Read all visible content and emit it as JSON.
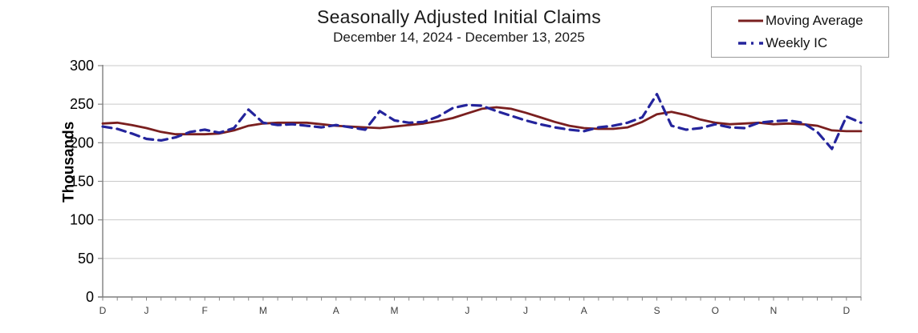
{
  "header": {
    "title": "Seasonally Adjusted Initial Claims",
    "subtitle": "December 14, 2024 - December 13, 2025"
  },
  "legend": {
    "items": [
      {
        "label": "Moving Average",
        "color": "#7a1f1f",
        "line_style": "solid"
      },
      {
        "label": "Weekly IC",
        "color": "#24249c",
        "line_style": "dashed"
      }
    ]
  },
  "y_axis": {
    "title": "Thousands"
  },
  "chart_data": {
    "type": "line",
    "title": "Seasonally Adjusted Initial Claims",
    "subtitle": "December 14, 2024 - December 13, 2025",
    "xlabel": "",
    "ylabel": "Thousands",
    "ylim": [
      0,
      300
    ],
    "yticks": [
      0,
      50,
      100,
      150,
      200,
      250,
      300
    ],
    "grid": "horizontal",
    "legend_position": "top-right",
    "x_unit": "weeks ending Dec 14, 2024 through Dec 13, 2025",
    "weeks": 53,
    "month_tick_labels": [
      {
        "label": "D",
        "week": 0
      },
      {
        "label": "J",
        "week": 3
      },
      {
        "label": "F",
        "week": 7
      },
      {
        "label": "M",
        "week": 11
      },
      {
        "label": "A",
        "week": 16
      },
      {
        "label": "M",
        "week": 20
      },
      {
        "label": "J",
        "week": 25
      },
      {
        "label": "J",
        "week": 29
      },
      {
        "label": "A",
        "week": 33
      },
      {
        "label": "S",
        "week": 38
      },
      {
        "label": "O",
        "week": 42
      },
      {
        "label": "N",
        "week": 46
      },
      {
        "label": "D",
        "week": 51
      }
    ],
    "series": [
      {
        "name": "Moving Average",
        "color": "#7a1f1f",
        "style": "solid",
        "values": [
          225,
          226,
          223,
          219,
          214,
          211,
          211,
          211,
          212,
          216,
          222,
          225,
          226,
          226,
          226,
          224,
          222,
          221,
          220,
          219,
          221,
          223,
          225,
          228,
          232,
          238,
          244,
          246,
          244,
          239,
          233,
          227,
          222,
          219,
          218,
          218,
          220,
          227,
          237,
          240,
          236,
          230,
          226,
          224,
          225,
          226,
          224,
          225,
          224,
          222,
          216,
          215,
          215
        ]
      },
      {
        "name": "Weekly IC",
        "color": "#24249c",
        "style": "dashed",
        "values": [
          221,
          218,
          212,
          205,
          203,
          207,
          214,
          217,
          213,
          219,
          243,
          226,
          223,
          224,
          222,
          220,
          223,
          220,
          217,
          241,
          229,
          226,
          227,
          234,
          245,
          249,
          248,
          241,
          235,
          229,
          224,
          220,
          217,
          215,
          220,
          222,
          226,
          233,
          263,
          222,
          217,
          219,
          224,
          220,
          219,
          226,
          228,
          229,
          226,
          214,
          192,
          234,
          226
        ]
      }
    ]
  }
}
